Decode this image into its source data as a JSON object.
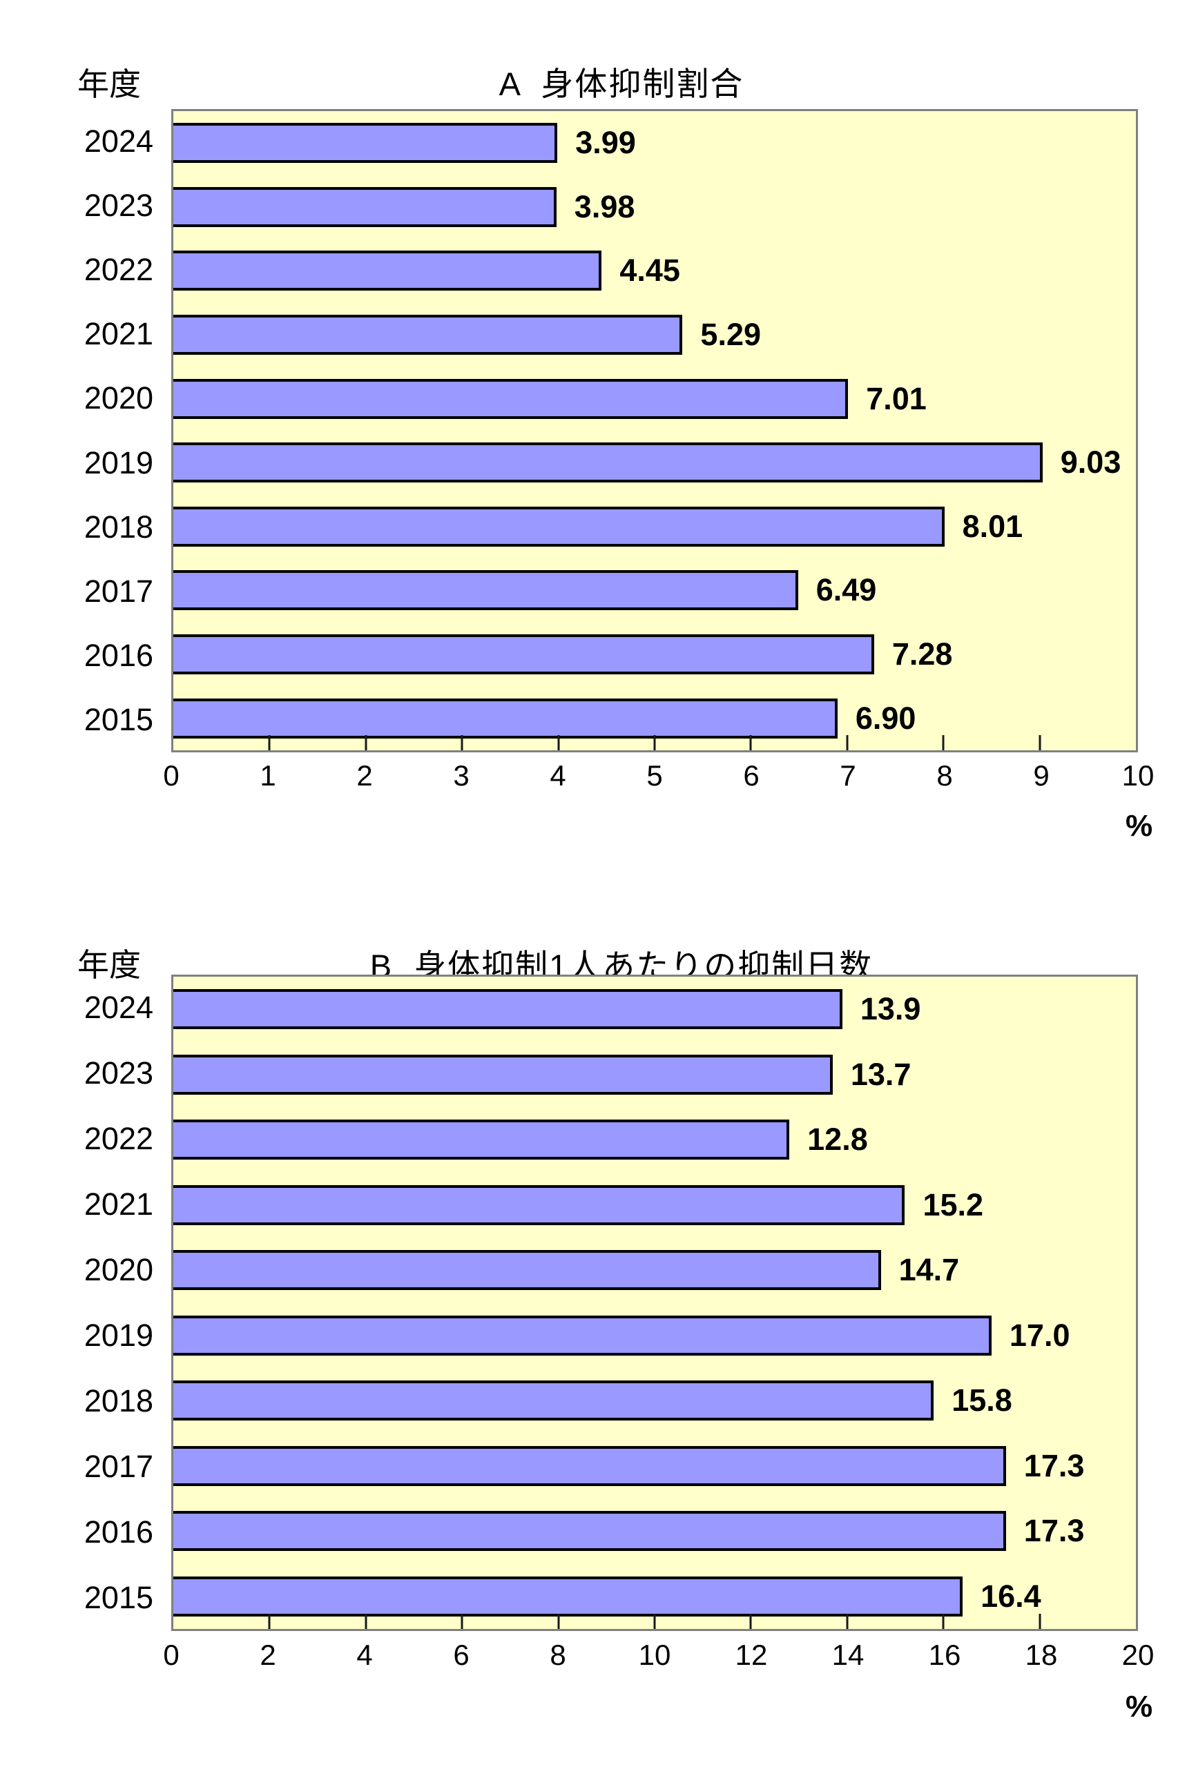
{
  "chart_data": [
    {
      "type": "bar",
      "orientation": "horizontal",
      "title": "A  身体抑制割合",
      "y_axis_title": "年度",
      "categories": [
        "2024",
        "2023",
        "2022",
        "2021",
        "2020",
        "2019",
        "2018",
        "2017",
        "2016",
        "2015"
      ],
      "values": [
        3.99,
        3.98,
        4.45,
        5.29,
        7.01,
        9.03,
        8.01,
        6.49,
        7.28,
        6.9
      ],
      "value_labels": [
        "3.99",
        "3.98",
        "4.45",
        "5.29",
        "7.01",
        "9.03",
        "8.01",
        "6.49",
        "7.28",
        "6.90"
      ],
      "xlim": [
        0,
        10
      ],
      "x_ticks": [
        0,
        1,
        2,
        3,
        4,
        5,
        6,
        7,
        8,
        9,
        10
      ],
      "unit": "%",
      "grid": "ticks-only",
      "legend": "none",
      "bar_color": "#9999FF",
      "bar_border_color": "#000000",
      "plot_bg": "#FFFFCC",
      "plot_border_color": "#808080"
    },
    {
      "type": "bar",
      "orientation": "horizontal",
      "title": "B  身体抑制1人あたりの抑制日数",
      "y_axis_title": "年度",
      "categories": [
        "2024",
        "2023",
        "2022",
        "2021",
        "2020",
        "2019",
        "2018",
        "2017",
        "2016",
        "2015"
      ],
      "values": [
        13.9,
        13.7,
        12.8,
        15.2,
        14.7,
        17.0,
        15.8,
        17.3,
        17.3,
        16.4
      ],
      "value_labels": [
        "13.9",
        "13.7",
        "12.8",
        "15.2",
        "14.7",
        "17.0",
        "15.8",
        "17.3",
        "17.3",
        "16.4"
      ],
      "xlim": [
        0,
        20
      ],
      "x_ticks": [
        0,
        2,
        4,
        6,
        8,
        10,
        12,
        14,
        16,
        18,
        20
      ],
      "unit": "%",
      "grid": "ticks-only",
      "legend": "none",
      "bar_color": "#9999FF",
      "bar_border_color": "#000000",
      "plot_bg": "#FFFFCC",
      "plot_border_color": "#808080"
    }
  ]
}
